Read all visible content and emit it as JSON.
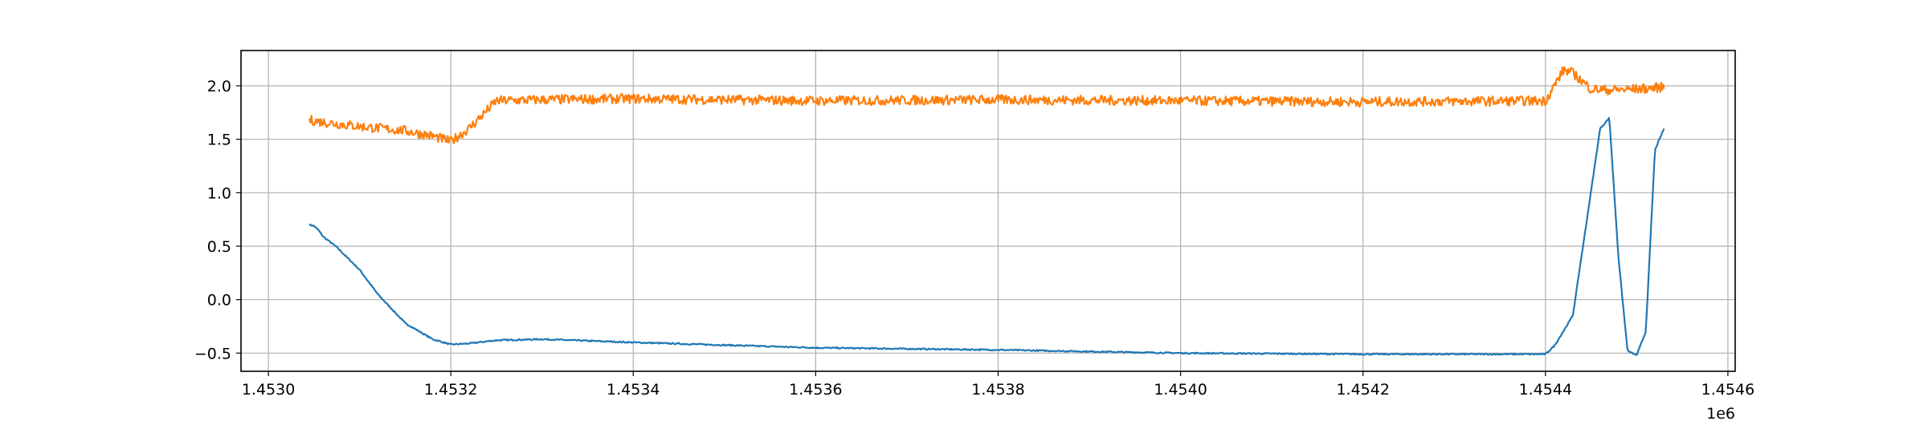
{
  "chart_data": {
    "type": "line",
    "title": "",
    "xlabel": "",
    "ylabel": "",
    "x_offset_label": "1e6",
    "xlim": [
      1.45297,
      1.454608
    ],
    "ylim": [
      -0.67,
      2.33
    ],
    "grid": true,
    "x_ticks": [
      1.453,
      1.4532,
      1.4534,
      1.4536,
      1.4538,
      1.454,
      1.4542,
      1.4544,
      1.4546
    ],
    "x_tick_labels": [
      "1.4530",
      "1.4532",
      "1.4534",
      "1.4536",
      "1.4538",
      "1.4540",
      "1.4542",
      "1.4544",
      "1.4546"
    ],
    "y_ticks": [
      -0.5,
      0.0,
      0.5,
      1.0,
      1.5,
      2.0
    ],
    "y_tick_labels": [
      "−0.5",
      "0.0",
      "0.5",
      "1.0",
      "1.5",
      "2.0"
    ],
    "noise_seed": 7,
    "series": [
      {
        "color": "#1f77b4",
        "noise": 0.006,
        "x": [
          1.453045,
          1.45305,
          1.453055,
          1.45306,
          1.453075,
          1.4531,
          1.45312,
          1.45315,
          1.45318,
          1.4532,
          1.45322,
          1.45325,
          1.4533,
          1.4534,
          1.4536,
          1.4538,
          1.454,
          1.4542,
          1.4544,
          1.45441,
          1.45443,
          1.45446,
          1.45447,
          1.45448,
          1.45449,
          1.4545,
          1.45451,
          1.45452,
          1.45453
        ],
        "y": [
          0.7,
          0.69,
          0.65,
          0.59,
          0.49,
          0.28,
          0.05,
          -0.22,
          -0.37,
          -0.42,
          -0.41,
          -0.38,
          -0.37,
          -0.4,
          -0.45,
          -0.47,
          -0.5,
          -0.51,
          -0.51,
          -0.43,
          -0.15,
          1.6,
          1.7,
          0.4,
          -0.48,
          -0.52,
          -0.3,
          1.4,
          1.6
        ]
      },
      {
        "color": "#ff7f0e",
        "noise": 0.045,
        "x": [
          1.453045,
          1.45306,
          1.4531,
          1.45315,
          1.45318,
          1.4532,
          1.45322,
          1.45325,
          1.4533,
          1.4534,
          1.4536,
          1.4538,
          1.454,
          1.4542,
          1.4544,
          1.45442,
          1.45443,
          1.45445,
          1.45447,
          1.4545,
          1.45452,
          1.45453
        ],
        "y": [
          1.68,
          1.66,
          1.62,
          1.58,
          1.53,
          1.48,
          1.6,
          1.86,
          1.87,
          1.88,
          1.86,
          1.87,
          1.86,
          1.85,
          1.86,
          2.15,
          2.12,
          1.97,
          1.96,
          1.97,
          1.98,
          1.99
        ]
      }
    ]
  }
}
